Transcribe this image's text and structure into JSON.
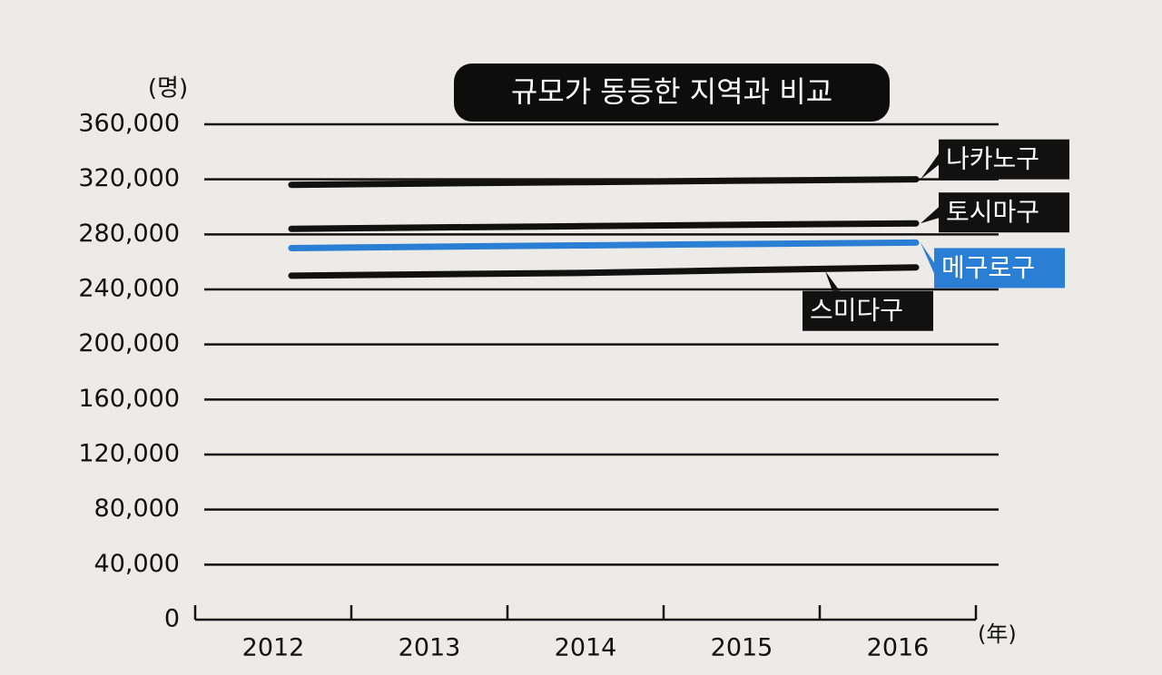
{
  "chart_data": {
    "type": "line",
    "title": "규모가 동등한 지역과 비교",
    "y_label": "(명)",
    "x_label": "(年)",
    "categories": [
      "2012",
      "2013",
      "2014",
      "2015",
      "2016"
    ],
    "series": [
      {
        "name": "나카노구",
        "color": "#111111",
        "values": [
          316000,
          317000,
          318000,
          319000,
          320000
        ]
      },
      {
        "name": "토시마구",
        "color": "#111111",
        "values": [
          284000,
          285000,
          286000,
          287000,
          288000
        ]
      },
      {
        "name": "메구로구",
        "color": "#2a7fd4",
        "values": [
          270000,
          271000,
          272000,
          273000,
          274000
        ]
      },
      {
        "name": "스미다구",
        "color": "#111111",
        "values": [
          250000,
          251000,
          252000,
          254000,
          256000
        ]
      }
    ],
    "ylim": [
      0,
      360000
    ],
    "yticks": [
      0,
      {
        "value": 40000,
        "label": "40,000"
      },
      {
        "value": 80000,
        "label": "80,000"
      },
      {
        "value": 120000,
        "label": "120,000"
      },
      {
        "value": 160000,
        "label": "160,000"
      },
      {
        "value": 200000,
        "label": "200,000"
      },
      {
        "value": 240000,
        "label": "240,000"
      },
      {
        "value": 280000,
        "label": "280,000"
      },
      {
        "value": 320000,
        "label": "320,000"
      },
      {
        "value": 360000,
        "label": "360,000"
      }
    ],
    "grid": true
  }
}
